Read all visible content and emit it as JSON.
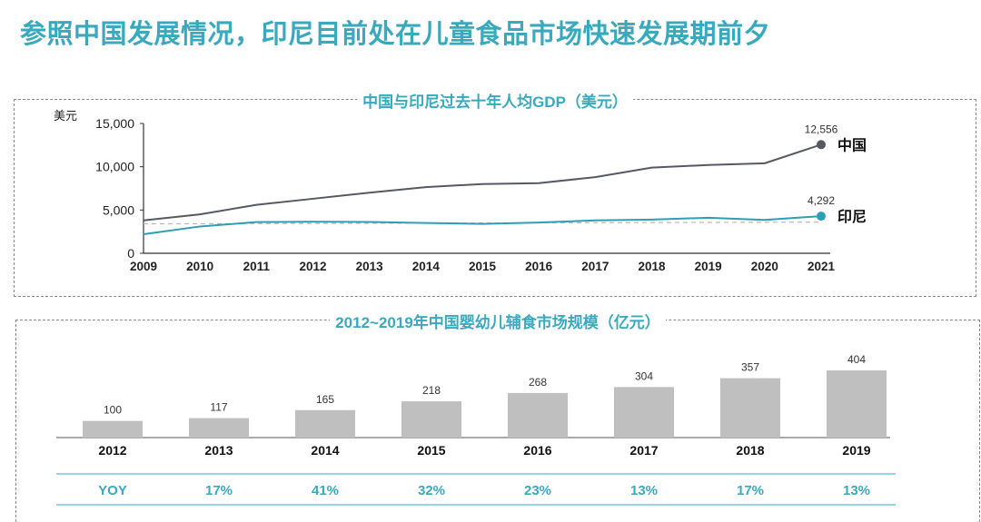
{
  "page_title": "参照中国发展情况，印尼目前处在儿童食品市场快速发展期前夕",
  "colors": {
    "accent": "#3aa9bd",
    "china_line": "#555a62",
    "indonesia_line": "#2e9fb3",
    "bar": "#bfbfbf",
    "table_line": "#7cc6d4"
  },
  "chart_data": [
    {
      "type": "line",
      "title": "中国与印尼过去十年人均GDP（美元）",
      "ylabel": "美元",
      "x": [
        2009,
        2010,
        2011,
        2012,
        2013,
        2014,
        2015,
        2016,
        2017,
        2018,
        2019,
        2020,
        2021
      ],
      "ylim": [
        0,
        15000
      ],
      "yticks": [
        0,
        5000,
        10000,
        15000
      ],
      "ytick_labels": [
        "0",
        "5,000",
        "10,000",
        "15,000"
      ],
      "series": [
        {
          "name": "中国",
          "values": [
            3800,
            4500,
            5600,
            6300,
            7000,
            7650,
            8000,
            8100,
            8800,
            9900,
            10200,
            10400,
            12556
          ],
          "end_label": "12,556"
        },
        {
          "name": "印尼",
          "values": [
            2200,
            3100,
            3600,
            3650,
            3620,
            3500,
            3400,
            3550,
            3800,
            3900,
            4100,
            3850,
            4292
          ],
          "end_label": "4,292"
        }
      ],
      "reference_line": {
        "values": [
          3400,
          3600
        ]
      }
    },
    {
      "type": "bar",
      "title": "2012~2019年中国婴幼儿辅食市场规模（亿元）",
      "categories": [
        "2012",
        "2013",
        "2014",
        "2015",
        "2016",
        "2017",
        "2018",
        "2019"
      ],
      "values": [
        100,
        117,
        165,
        218,
        268,
        304,
        357,
        404
      ],
      "data_labels": [
        "100",
        "117",
        "165",
        "218",
        "268",
        "304",
        "357",
        "404"
      ],
      "ylim": [
        0,
        404
      ]
    }
  ],
  "yoy": {
    "label": "YOY",
    "values": [
      "17%",
      "41%",
      "32%",
      "23%",
      "13%",
      "17%",
      "13%"
    ]
  }
}
